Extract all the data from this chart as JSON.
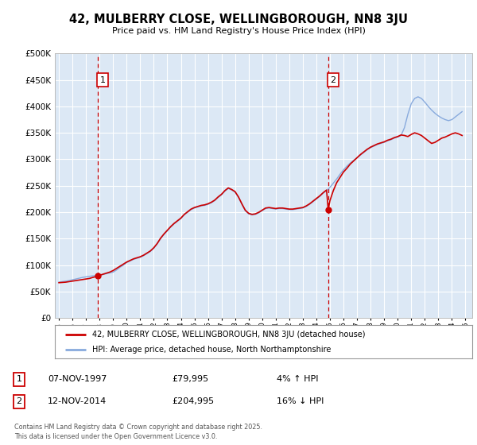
{
  "title_line1": "42, MULBERRY CLOSE, WELLINGBOROUGH, NN8 3JU",
  "title_line2": "Price paid vs. HM Land Registry's House Price Index (HPI)",
  "background_color": "#ffffff",
  "plot_bg_color": "#dce8f5",
  "grid_color": "#ffffff",
  "sale_color": "#cc0000",
  "hpi_color": "#88aadd",
  "marker_box_color": "#cc0000",
  "legend_sale": "42, MULBERRY CLOSE, WELLINGBOROUGH, NN8 3JU (detached house)",
  "legend_hpi": "HPI: Average price, detached house, North Northamptonshire",
  "info1_num": "1",
  "info1_date": "07-NOV-1997",
  "info1_price": "£79,995",
  "info1_hpi": "4% ↑ HPI",
  "info2_num": "2",
  "info2_date": "12-NOV-2014",
  "info2_price": "£204,995",
  "info2_hpi": "16% ↓ HPI",
  "footnote": "Contains HM Land Registry data © Crown copyright and database right 2025.\nThis data is licensed under the Open Government Licence v3.0.",
  "marker1_date": 1997.86,
  "marker2_date": 2014.87,
  "marker1_price": 79995,
  "marker2_price": 204995,
  "ylim": [
    0,
    500000
  ],
  "ytick_vals": [
    0,
    50000,
    100000,
    150000,
    200000,
    250000,
    300000,
    350000,
    400000,
    450000,
    500000
  ],
  "xlim_min": 1994.7,
  "xlim_max": 2025.5,
  "hpi_x": [
    1995.0,
    1995.25,
    1995.5,
    1995.75,
    1996.0,
    1996.25,
    1996.5,
    1996.75,
    1997.0,
    1997.25,
    1997.5,
    1997.75,
    1998.0,
    1998.25,
    1998.5,
    1998.75,
    1999.0,
    1999.25,
    1999.5,
    1999.75,
    2000.0,
    2000.25,
    2000.5,
    2000.75,
    2001.0,
    2001.25,
    2001.5,
    2001.75,
    2002.0,
    2002.25,
    2002.5,
    2002.75,
    2003.0,
    2003.25,
    2003.5,
    2003.75,
    2004.0,
    2004.25,
    2004.5,
    2004.75,
    2005.0,
    2005.25,
    2005.5,
    2005.75,
    2006.0,
    2006.25,
    2006.5,
    2006.75,
    2007.0,
    2007.25,
    2007.5,
    2007.75,
    2008.0,
    2008.25,
    2008.5,
    2008.75,
    2009.0,
    2009.25,
    2009.5,
    2009.75,
    2010.0,
    2010.25,
    2010.5,
    2010.75,
    2011.0,
    2011.25,
    2011.5,
    2011.75,
    2012.0,
    2012.25,
    2012.5,
    2012.75,
    2013.0,
    2013.25,
    2013.5,
    2013.75,
    2014.0,
    2014.25,
    2014.5,
    2014.75,
    2015.0,
    2015.25,
    2015.5,
    2015.75,
    2016.0,
    2016.25,
    2016.5,
    2016.75,
    2017.0,
    2017.25,
    2017.5,
    2017.75,
    2018.0,
    2018.25,
    2018.5,
    2018.75,
    2019.0,
    2019.25,
    2019.5,
    2019.75,
    2020.0,
    2020.25,
    2020.5,
    2020.75,
    2021.0,
    2021.25,
    2021.5,
    2021.75,
    2022.0,
    2022.25,
    2022.5,
    2022.75,
    2023.0,
    2023.25,
    2023.5,
    2023.75,
    2024.0,
    2024.25,
    2024.5,
    2024.75
  ],
  "hpi_y": [
    68000,
    69000,
    70000,
    71000,
    72500,
    74000,
    75500,
    77000,
    78000,
    79000,
    80000,
    80500,
    81000,
    82500,
    84000,
    85500,
    87000,
    91000,
    96000,
    100000,
    105000,
    108000,
    111000,
    113000,
    115000,
    118000,
    122000,
    126000,
    132000,
    140000,
    150000,
    158000,
    165000,
    172000,
    178000,
    183000,
    188000,
    195000,
    200000,
    205000,
    208000,
    210000,
    212000,
    213000,
    215000,
    218000,
    222000,
    228000,
    233000,
    240000,
    245000,
    242000,
    238000,
    228000,
    215000,
    203000,
    197000,
    195000,
    196000,
    199000,
    203000,
    207000,
    208000,
    207000,
    206000,
    207000,
    207000,
    206000,
    205000,
    205000,
    206000,
    207000,
    208000,
    211000,
    215000,
    220000,
    225000,
    230000,
    236000,
    241000,
    247000,
    255000,
    263000,
    272000,
    280000,
    287000,
    293000,
    298000,
    303000,
    308000,
    313000,
    318000,
    322000,
    325000,
    328000,
    330000,
    332000,
    335000,
    337000,
    340000,
    342000,
    345000,
    360000,
    385000,
    405000,
    415000,
    418000,
    415000,
    408000,
    400000,
    393000,
    387000,
    382000,
    378000,
    375000,
    373000,
    375000,
    380000,
    385000,
    390000
  ],
  "sale_x": [
    1995.0,
    1995.25,
    1995.5,
    1995.75,
    1996.0,
    1996.25,
    1996.5,
    1996.75,
    1997.0,
    1997.25,
    1997.5,
    1997.75,
    1997.86,
    1998.0,
    1998.25,
    1998.5,
    1998.75,
    1999.0,
    1999.25,
    1999.5,
    1999.75,
    2000.0,
    2000.25,
    2000.5,
    2000.75,
    2001.0,
    2001.25,
    2001.5,
    2001.75,
    2002.0,
    2002.25,
    2002.5,
    2002.75,
    2003.0,
    2003.25,
    2003.5,
    2003.75,
    2004.0,
    2004.25,
    2004.5,
    2004.75,
    2005.0,
    2005.25,
    2005.5,
    2005.75,
    2006.0,
    2006.25,
    2006.5,
    2006.75,
    2007.0,
    2007.25,
    2007.5,
    2007.75,
    2008.0,
    2008.25,
    2008.5,
    2008.75,
    2009.0,
    2009.25,
    2009.5,
    2009.75,
    2010.0,
    2010.25,
    2010.5,
    2010.75,
    2011.0,
    2011.25,
    2011.5,
    2011.75,
    2012.0,
    2012.25,
    2012.5,
    2012.75,
    2013.0,
    2013.25,
    2013.5,
    2013.75,
    2014.0,
    2014.25,
    2014.5,
    2014.75,
    2014.87,
    2015.0,
    2015.25,
    2015.5,
    2015.75,
    2016.0,
    2016.25,
    2016.5,
    2016.75,
    2017.0,
    2017.25,
    2017.5,
    2017.75,
    2018.0,
    2018.25,
    2018.5,
    2018.75,
    2019.0,
    2019.25,
    2019.5,
    2019.75,
    2020.0,
    2020.25,
    2020.5,
    2020.75,
    2021.0,
    2021.25,
    2021.5,
    2021.75,
    2022.0,
    2022.25,
    2022.5,
    2022.75,
    2023.0,
    2023.25,
    2023.5,
    2023.75,
    2024.0,
    2024.25,
    2024.5,
    2024.75
  ],
  "sale_y": [
    67000,
    67500,
    68000,
    69000,
    70000,
    71000,
    72000,
    73000,
    74000,
    75000,
    77000,
    78500,
    79995,
    81000,
    83000,
    85000,
    87000,
    90000,
    94000,
    98000,
    102000,
    106000,
    109000,
    112000,
    114000,
    116000,
    119000,
    123000,
    127000,
    133000,
    141000,
    151000,
    159000,
    166000,
    173000,
    179000,
    184000,
    189000,
    196000,
    201000,
    206000,
    209000,
    211000,
    213000,
    214000,
    216000,
    219000,
    223000,
    229000,
    234000,
    241000,
    246000,
    243000,
    239000,
    229000,
    216000,
    204000,
    198000,
    196000,
    197000,
    200000,
    204000,
    208000,
    209000,
    208000,
    207000,
    208000,
    208000,
    207000,
    206000,
    206000,
    207000,
    208000,
    209000,
    212000,
    216000,
    221000,
    226000,
    231000,
    237000,
    242000,
    204995,
    222000,
    241000,
    256000,
    266000,
    276000,
    283000,
    291000,
    297000,
    303000,
    309000,
    314000,
    319000,
    323000,
    326000,
    329000,
    331000,
    333000,
    336000,
    338000,
    341000,
    343000,
    346000,
    345000,
    343000,
    347000,
    350000,
    348000,
    345000,
    340000,
    335000,
    330000,
    332000,
    336000,
    340000,
    342000,
    345000,
    348000,
    350000,
    348000,
    345000
  ]
}
